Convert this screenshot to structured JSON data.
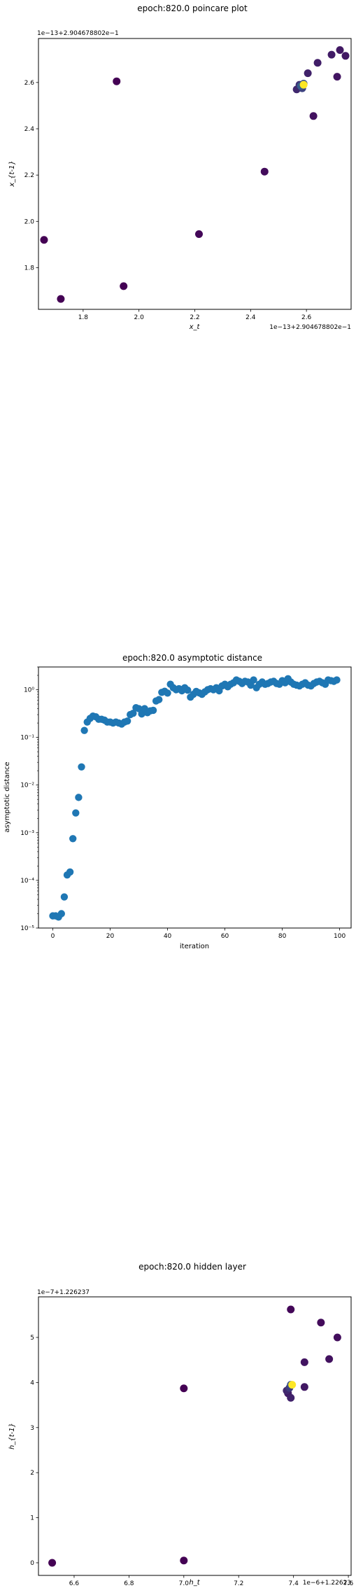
{
  "chart_data": [
    {
      "type": "scatter",
      "title": "epoch:820.0 poincare plot",
      "xlabel": "x_t",
      "ylabel": "x_{t-1}",
      "x_offset_text": "1e−13+2.904678802e−1",
      "y_offset_text": "1e−13+2.904678802e−1",
      "xlim": [
        1.64,
        2.76
      ],
      "ylim": [
        1.62,
        2.79
      ],
      "xticks": [
        "1.8",
        "2.0",
        "2.2",
        "2.4",
        "2.6"
      ],
      "xtick_values": [
        1.8,
        2.0,
        2.2,
        2.4,
        2.6
      ],
      "yticks": [
        "1.8",
        "2.0",
        "2.2",
        "2.4",
        "2.6"
      ],
      "ytick_values": [
        1.8,
        2.0,
        2.2,
        2.4,
        2.6
      ],
      "grid": false,
      "colormap": [
        "#440154",
        "#3b528b",
        "#21918c",
        "#5ec962",
        "#fde725"
      ],
      "points": [
        {
          "x": 1.66,
          "y": 1.92,
          "c": 0.0
        },
        {
          "x": 1.72,
          "y": 1.665,
          "c": 0.0
        },
        {
          "x": 1.92,
          "y": 2.605,
          "c": 0.0
        },
        {
          "x": 1.945,
          "y": 1.72,
          "c": 0.0
        },
        {
          "x": 2.215,
          "y": 1.945,
          "c": 0.02
        },
        {
          "x": 2.45,
          "y": 2.215,
          "c": 0.03
        },
        {
          "x": 2.625,
          "y": 2.455,
          "c": 0.05
        },
        {
          "x": 2.71,
          "y": 2.625,
          "c": 0.06
        },
        {
          "x": 2.72,
          "y": 2.74,
          "c": 0.07
        },
        {
          "x": 2.74,
          "y": 2.715,
          "c": 0.07
        },
        {
          "x": 2.69,
          "y": 2.72,
          "c": 0.08
        },
        {
          "x": 2.64,
          "y": 2.685,
          "c": 0.09
        },
        {
          "x": 2.605,
          "y": 2.64,
          "c": 0.1
        },
        {
          "x": 2.565,
          "y": 2.57,
          "c": 0.12
        },
        {
          "x": 2.575,
          "y": 2.59,
          "c": 0.15
        },
        {
          "x": 2.585,
          "y": 2.575,
          "c": 0.2
        },
        {
          "x": 2.59,
          "y": 2.595,
          "c": 0.25
        },
        {
          "x": 2.58,
          "y": 2.585,
          "c": 0.3
        },
        {
          "x": 2.59,
          "y": 2.59,
          "c": 1.0
        }
      ]
    },
    {
      "type": "scatter",
      "title": "epoch:820.0 asymptotic distance",
      "xlabel": "iteration",
      "ylabel": "asymptotic distance",
      "xscale": "linear",
      "yscale": "log",
      "xlim": [
        -5,
        104
      ],
      "ylim": [
        1e-05,
        3.0
      ],
      "xticks": [
        "0",
        "20",
        "40",
        "60",
        "80",
        "100"
      ],
      "xtick_values": [
        0,
        20,
        40,
        60,
        80,
        100
      ],
      "yticks": [
        "10⁻⁵",
        "10⁻⁴",
        "10⁻³",
        "10⁻²",
        "10⁻¹",
        "10⁰"
      ],
      "ytick_values": [
        1e-05,
        0.0001,
        0.001,
        0.01,
        0.1,
        1
      ],
      "grid": false,
      "color": "#1f77b4",
      "x": [
        0,
        1,
        2,
        3,
        4,
        5,
        6,
        7,
        8,
        9,
        10,
        11,
        12,
        13,
        14,
        15,
        16,
        17,
        18,
        19,
        20,
        21,
        22,
        23,
        24,
        25,
        26,
        27,
        28,
        29,
        30,
        31,
        32,
        33,
        34,
        35,
        36,
        37,
        38,
        39,
        40,
        41,
        42,
        43,
        44,
        45,
        46,
        47,
        48,
        49,
        50,
        51,
        52,
        53,
        54,
        55,
        56,
        57,
        58,
        59,
        60,
        61,
        62,
        63,
        64,
        65,
        66,
        67,
        68,
        69,
        70,
        71,
        72,
        73,
        74,
        75,
        76,
        77,
        78,
        79,
        80,
        81,
        82,
        83,
        84,
        85,
        86,
        87,
        88,
        89,
        90,
        91,
        92,
        93,
        94,
        95,
        96,
        97,
        98,
        99
      ],
      "y": [
        1.8e-05,
        1.8e-05,
        1.7e-05,
        2e-05,
        4.5e-05,
        0.00013,
        0.00015,
        0.00075,
        0.0026,
        0.0055,
        0.024,
        0.14,
        0.21,
        0.25,
        0.28,
        0.27,
        0.24,
        0.24,
        0.23,
        0.21,
        0.21,
        0.2,
        0.21,
        0.2,
        0.19,
        0.21,
        0.22,
        0.3,
        0.32,
        0.42,
        0.4,
        0.31,
        0.4,
        0.33,
        0.36,
        0.37,
        0.58,
        0.62,
        0.88,
        0.93,
        0.85,
        1.3,
        1.1,
        1.0,
        1.05,
        0.95,
        1.1,
        0.98,
        0.7,
        0.8,
        0.92,
        0.86,
        0.8,
        0.9,
        1.0,
        1.05,
        1.0,
        1.1,
        0.95,
        1.2,
        1.3,
        1.15,
        1.3,
        1.4,
        1.6,
        1.5,
        1.35,
        1.5,
        1.45,
        1.25,
        1.6,
        1.1,
        1.3,
        1.45,
        1.3,
        1.35,
        1.45,
        1.5,
        1.35,
        1.3,
        1.55,
        1.4,
        1.7,
        1.45,
        1.3,
        1.25,
        1.2,
        1.3,
        1.4,
        1.25,
        1.2,
        1.35,
        1.45,
        1.5,
        1.4,
        1.3,
        1.6,
        1.55,
        1.5,
        1.6
      ]
    },
    {
      "type": "scatter",
      "title": "epoch:820.0 hidden layer",
      "xlabel": "h_t",
      "ylabel": "h_{t-1}",
      "x_offset_text": "1e−6+1.22623",
      "y_offset_text": "1e−7+1.226237",
      "xlim": [
        6.47,
        7.61
      ],
      "ylim": [
        -0.28,
        5.9
      ],
      "xticks": [
        "6.6",
        "6.8",
        "7.0",
        "7.2",
        "7.4",
        "7.6"
      ],
      "xtick_values": [
        6.6,
        6.8,
        7.0,
        7.2,
        7.4,
        7.6
      ],
      "yticks": [
        "0",
        "1",
        "2",
        "3",
        "4",
        "5"
      ],
      "ytick_values": [
        0,
        1,
        2,
        3,
        4,
        5
      ],
      "grid": false,
      "colormap": [
        "#440154",
        "#3b528b",
        "#21918c",
        "#5ec962",
        "#fde725"
      ],
      "points": [
        {
          "x": 6.52,
          "y": 0.0,
          "c": 0.0
        },
        {
          "x": 7.0,
          "y": 0.05,
          "c": 0.0
        },
        {
          "x": 7.0,
          "y": 3.87,
          "c": 0.0
        },
        {
          "x": 7.39,
          "y": 5.62,
          "c": 0.02
        },
        {
          "x": 7.5,
          "y": 5.33,
          "c": 0.03
        },
        {
          "x": 7.56,
          "y": 5.0,
          "c": 0.04
        },
        {
          "x": 7.53,
          "y": 4.52,
          "c": 0.05
        },
        {
          "x": 7.44,
          "y": 4.45,
          "c": 0.06
        },
        {
          "x": 7.44,
          "y": 3.9,
          "c": 0.07
        },
        {
          "x": 7.38,
          "y": 3.76,
          "c": 0.08
        },
        {
          "x": 7.39,
          "y": 3.66,
          "c": 0.1
        },
        {
          "x": 7.375,
          "y": 3.82,
          "c": 0.12
        },
        {
          "x": 7.385,
          "y": 3.88,
          "c": 0.18
        },
        {
          "x": 7.39,
          "y": 3.95,
          "c": 0.25
        },
        {
          "x": 7.395,
          "y": 3.95,
          "c": 1.0
        }
      ]
    }
  ]
}
